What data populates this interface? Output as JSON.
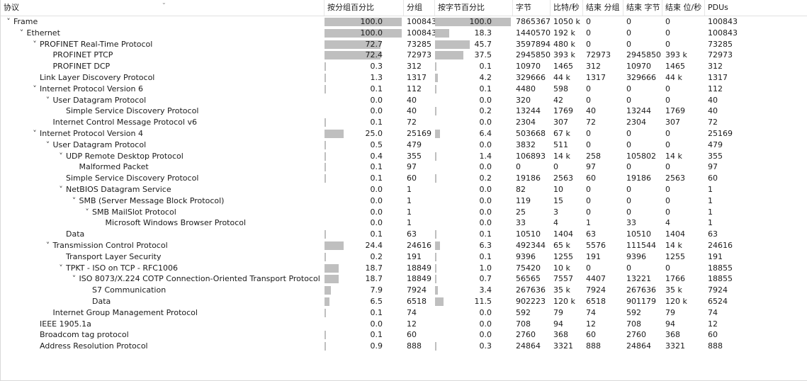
{
  "headers": {
    "protocol": "协议",
    "pct_packets": "按分组百分比",
    "packets": "分组",
    "pct_bytes": "按字节百分比",
    "bytes": "字节",
    "bits_s": "比特/秒",
    "end_packets": "结束 分组",
    "end_bytes": "结束 字节",
    "end_bits_s": "结束 位/秒",
    "pdus": "PDUs"
  },
  "rows": [
    {
      "name": "Frame",
      "depth": 0,
      "expanded": true,
      "pct_packets": "100.0",
      "pct_packets_val": 100.0,
      "packets": "100843",
      "pct_bytes": "100.0",
      "pct_bytes_val": 100.0,
      "bytes": "7865367",
      "bits_s": "1050 k",
      "end_packets": "0",
      "end_bytes": "0",
      "end_bits_s": "0",
      "pdus": "100843"
    },
    {
      "name": "Ethernet",
      "depth": 1,
      "expanded": true,
      "pct_packets": "100.0",
      "pct_packets_val": 100.0,
      "packets": "100843",
      "pct_bytes": "18.3",
      "pct_bytes_val": 18.3,
      "bytes": "1440570",
      "bits_s": "192 k",
      "end_packets": "0",
      "end_bytes": "0",
      "end_bits_s": "0",
      "pdus": "100843"
    },
    {
      "name": "PROFINET Real-Time Protocol",
      "depth": 2,
      "expanded": true,
      "pct_packets": "72.7",
      "pct_packets_val": 72.7,
      "packets": "73285",
      "pct_bytes": "45.7",
      "pct_bytes_val": 45.7,
      "bytes": "3597894",
      "bits_s": "480 k",
      "end_packets": "0",
      "end_bytes": "0",
      "end_bits_s": "0",
      "pdus": "73285"
    },
    {
      "name": "PROFINET PTCP",
      "depth": 3,
      "expanded": null,
      "pct_packets": "72.4",
      "pct_packets_val": 72.4,
      "packets": "72973",
      "pct_bytes": "37.5",
      "pct_bytes_val": 37.5,
      "bytes": "2945850",
      "bits_s": "393 k",
      "end_packets": "72973",
      "end_bytes": "2945850",
      "end_bits_s": "393 k",
      "pdus": "72973"
    },
    {
      "name": "PROFINET DCP",
      "depth": 3,
      "expanded": null,
      "pct_packets": "0.3",
      "pct_packets_val": 0.3,
      "packets": "312",
      "pct_bytes": "0.1",
      "pct_bytes_val": 0.1,
      "bytes": "10970",
      "bits_s": "1465",
      "end_packets": "312",
      "end_bytes": "10970",
      "end_bits_s": "1465",
      "pdus": "312"
    },
    {
      "name": "Link Layer Discovery Protocol",
      "depth": 2,
      "expanded": null,
      "pct_packets": "1.3",
      "pct_packets_val": 1.3,
      "packets": "1317",
      "pct_bytes": "4.2",
      "pct_bytes_val": 4.2,
      "bytes": "329666",
      "bits_s": "44 k",
      "end_packets": "1317",
      "end_bytes": "329666",
      "end_bits_s": "44 k",
      "pdus": "1317"
    },
    {
      "name": "Internet Protocol Version 6",
      "depth": 2,
      "expanded": true,
      "pct_packets": "0.1",
      "pct_packets_val": 0.1,
      "packets": "112",
      "pct_bytes": "0.1",
      "pct_bytes_val": 0.1,
      "bytes": "4480",
      "bits_s": "598",
      "end_packets": "0",
      "end_bytes": "0",
      "end_bits_s": "0",
      "pdus": "112"
    },
    {
      "name": "User Datagram Protocol",
      "depth": 3,
      "expanded": true,
      "pct_packets": "0.0",
      "pct_packets_val": 0.0,
      "packets": "40",
      "pct_bytes": "0.0",
      "pct_bytes_val": 0.0,
      "bytes": "320",
      "bits_s": "42",
      "end_packets": "0",
      "end_bytes": "0",
      "end_bits_s": "0",
      "pdus": "40"
    },
    {
      "name": "Simple Service Discovery Protocol",
      "depth": 4,
      "expanded": null,
      "pct_packets": "0.0",
      "pct_packets_val": 0.0,
      "packets": "40",
      "pct_bytes": "0.2",
      "pct_bytes_val": 0.2,
      "bytes": "13244",
      "bits_s": "1769",
      "end_packets": "40",
      "end_bytes": "13244",
      "end_bits_s": "1769",
      "pdus": "40"
    },
    {
      "name": "Internet Control Message Protocol v6",
      "depth": 3,
      "expanded": null,
      "pct_packets": "0.1",
      "pct_packets_val": 0.1,
      "packets": "72",
      "pct_bytes": "0.0",
      "pct_bytes_val": 0.0,
      "bytes": "2304",
      "bits_s": "307",
      "end_packets": "72",
      "end_bytes": "2304",
      "end_bits_s": "307",
      "pdus": "72"
    },
    {
      "name": "Internet Protocol Version 4",
      "depth": 2,
      "expanded": true,
      "pct_packets": "25.0",
      "pct_packets_val": 25.0,
      "packets": "25169",
      "pct_bytes": "6.4",
      "pct_bytes_val": 6.4,
      "bytes": "503668",
      "bits_s": "67 k",
      "end_packets": "0",
      "end_bytes": "0",
      "end_bits_s": "0",
      "pdus": "25169"
    },
    {
      "name": "User Datagram Protocol",
      "depth": 3,
      "expanded": true,
      "pct_packets": "0.5",
      "pct_packets_val": 0.5,
      "packets": "479",
      "pct_bytes": "0.0",
      "pct_bytes_val": 0.0,
      "bytes": "3832",
      "bits_s": "511",
      "end_packets": "0",
      "end_bytes": "0",
      "end_bits_s": "0",
      "pdus": "479"
    },
    {
      "name": "UDP Remote Desktop Protocol",
      "depth": 4,
      "expanded": true,
      "pct_packets": "0.4",
      "pct_packets_val": 0.4,
      "packets": "355",
      "pct_bytes": "1.4",
      "pct_bytes_val": 1.4,
      "bytes": "106893",
      "bits_s": "14 k",
      "end_packets": "258",
      "end_bytes": "105802",
      "end_bits_s": "14 k",
      "pdus": "355"
    },
    {
      "name": "Malformed Packet",
      "depth": 5,
      "expanded": null,
      "pct_packets": "0.1",
      "pct_packets_val": 0.1,
      "packets": "97",
      "pct_bytes": "0.0",
      "pct_bytes_val": 0.0,
      "bytes": "0",
      "bits_s": "0",
      "end_packets": "97",
      "end_bytes": "0",
      "end_bits_s": "0",
      "pdus": "97"
    },
    {
      "name": "Simple Service Discovery Protocol",
      "depth": 4,
      "expanded": null,
      "pct_packets": "0.1",
      "pct_packets_val": 0.1,
      "packets": "60",
      "pct_bytes": "0.2",
      "pct_bytes_val": 0.2,
      "bytes": "19186",
      "bits_s": "2563",
      "end_packets": "60",
      "end_bytes": "19186",
      "end_bits_s": "2563",
      "pdus": "60"
    },
    {
      "name": "NetBIOS Datagram Service",
      "depth": 4,
      "expanded": true,
      "pct_packets": "0.0",
      "pct_packets_val": 0.0,
      "packets": "1",
      "pct_bytes": "0.0",
      "pct_bytes_val": 0.0,
      "bytes": "82",
      "bits_s": "10",
      "end_packets": "0",
      "end_bytes": "0",
      "end_bits_s": "0",
      "pdus": "1"
    },
    {
      "name": "SMB (Server Message Block Protocol)",
      "depth": 5,
      "expanded": true,
      "pct_packets": "0.0",
      "pct_packets_val": 0.0,
      "packets": "1",
      "pct_bytes": "0.0",
      "pct_bytes_val": 0.0,
      "bytes": "119",
      "bits_s": "15",
      "end_packets": "0",
      "end_bytes": "0",
      "end_bits_s": "0",
      "pdus": "1"
    },
    {
      "name": "SMB MailSlot Protocol",
      "depth": 6,
      "expanded": true,
      "pct_packets": "0.0",
      "pct_packets_val": 0.0,
      "packets": "1",
      "pct_bytes": "0.0",
      "pct_bytes_val": 0.0,
      "bytes": "25",
      "bits_s": "3",
      "end_packets": "0",
      "end_bytes": "0",
      "end_bits_s": "0",
      "pdus": "1"
    },
    {
      "name": "Microsoft Windows Browser Protocol",
      "depth": 7,
      "expanded": null,
      "pct_packets": "0.0",
      "pct_packets_val": 0.0,
      "packets": "1",
      "pct_bytes": "0.0",
      "pct_bytes_val": 0.0,
      "bytes": "33",
      "bits_s": "4",
      "end_packets": "1",
      "end_bytes": "33",
      "end_bits_s": "4",
      "pdus": "1"
    },
    {
      "name": "Data",
      "depth": 4,
      "expanded": null,
      "pct_packets": "0.1",
      "pct_packets_val": 0.1,
      "packets": "63",
      "pct_bytes": "0.1",
      "pct_bytes_val": 0.1,
      "bytes": "10510",
      "bits_s": "1404",
      "end_packets": "63",
      "end_bytes": "10510",
      "end_bits_s": "1404",
      "pdus": "63"
    },
    {
      "name": "Transmission Control Protocol",
      "depth": 3,
      "expanded": true,
      "pct_packets": "24.4",
      "pct_packets_val": 24.4,
      "packets": "24616",
      "pct_bytes": "6.3",
      "pct_bytes_val": 6.3,
      "bytes": "492344",
      "bits_s": "65 k",
      "end_packets": "5576",
      "end_bytes": "111544",
      "end_bits_s": "14 k",
      "pdus": "24616"
    },
    {
      "name": "Transport Layer Security",
      "depth": 4,
      "expanded": null,
      "pct_packets": "0.2",
      "pct_packets_val": 0.2,
      "packets": "191",
      "pct_bytes": "0.1",
      "pct_bytes_val": 0.1,
      "bytes": "9396",
      "bits_s": "1255",
      "end_packets": "191",
      "end_bytes": "9396",
      "end_bits_s": "1255",
      "pdus": "191"
    },
    {
      "name": "TPKT - ISO on TCP - RFC1006",
      "depth": 4,
      "expanded": true,
      "pct_packets": "18.7",
      "pct_packets_val": 18.7,
      "packets": "18849",
      "pct_bytes": "1.0",
      "pct_bytes_val": 1.0,
      "bytes": "75420",
      "bits_s": "10 k",
      "end_packets": "0",
      "end_bytes": "0",
      "end_bits_s": "0",
      "pdus": "18855"
    },
    {
      "name": "ISO 8073/X.224 COTP Connection-Oriented Transport Protocol",
      "depth": 5,
      "expanded": true,
      "pct_packets": "18.7",
      "pct_packets_val": 18.7,
      "packets": "18849",
      "pct_bytes": "0.7",
      "pct_bytes_val": 0.7,
      "bytes": "56565",
      "bits_s": "7557",
      "end_packets": "4407",
      "end_bytes": "13221",
      "end_bits_s": "1766",
      "pdus": "18855"
    },
    {
      "name": "S7 Communication",
      "depth": 6,
      "expanded": null,
      "pct_packets": "7.9",
      "pct_packets_val": 7.9,
      "packets": "7924",
      "pct_bytes": "3.4",
      "pct_bytes_val": 3.4,
      "bytes": "267636",
      "bits_s": "35 k",
      "end_packets": "7924",
      "end_bytes": "267636",
      "end_bits_s": "35 k",
      "pdus": "7924"
    },
    {
      "name": "Data",
      "depth": 6,
      "expanded": null,
      "pct_packets": "6.5",
      "pct_packets_val": 6.5,
      "packets": "6518",
      "pct_bytes": "11.5",
      "pct_bytes_val": 11.5,
      "bytes": "902223",
      "bits_s": "120 k",
      "end_packets": "6518",
      "end_bytes": "901179",
      "end_bits_s": "120 k",
      "pdus": "6524"
    },
    {
      "name": "Internet Group Management Protocol",
      "depth": 3,
      "expanded": null,
      "pct_packets": "0.1",
      "pct_packets_val": 0.1,
      "packets": "74",
      "pct_bytes": "0.0",
      "pct_bytes_val": 0.0,
      "bytes": "592",
      "bits_s": "79",
      "end_packets": "74",
      "end_bytes": "592",
      "end_bits_s": "79",
      "pdus": "74"
    },
    {
      "name": "IEEE 1905.1a",
      "depth": 2,
      "expanded": null,
      "pct_packets": "0.0",
      "pct_packets_val": 0.0,
      "packets": "12",
      "pct_bytes": "0.0",
      "pct_bytes_val": 0.0,
      "bytes": "708",
      "bits_s": "94",
      "end_packets": "12",
      "end_bytes": "708",
      "end_bits_s": "94",
      "pdus": "12"
    },
    {
      "name": "Broadcom tag protocol",
      "depth": 2,
      "expanded": null,
      "pct_packets": "0.1",
      "pct_packets_val": 0.1,
      "packets": "60",
      "pct_bytes": "0.0",
      "pct_bytes_val": 0.0,
      "bytes": "2760",
      "bits_s": "368",
      "end_packets": "60",
      "end_bytes": "2760",
      "end_bits_s": "368",
      "pdus": "60"
    },
    {
      "name": "Address Resolution Protocol",
      "depth": 2,
      "expanded": null,
      "pct_packets": "0.9",
      "pct_packets_val": 0.9,
      "packets": "888",
      "pct_bytes": "0.3",
      "pct_bytes_val": 0.3,
      "bytes": "24864",
      "bits_s": "3321",
      "end_packets": "888",
      "end_bytes": "24864",
      "end_bits_s": "3321",
      "pdus": "888"
    }
  ],
  "colors": {
    "bar": "#bfbfbf"
  }
}
